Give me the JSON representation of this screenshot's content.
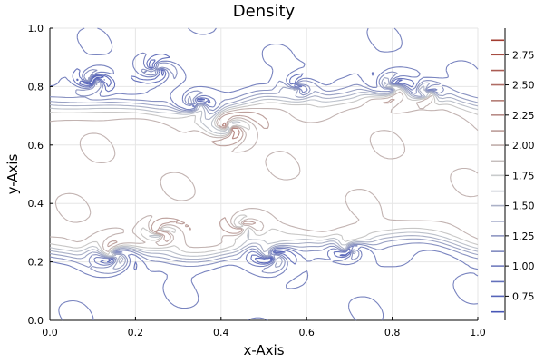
{
  "chart_data": {
    "type": "contour",
    "title": "Density",
    "xlabel": "x-Axis",
    "ylabel": "y-Axis",
    "xlim": [
      0,
      1
    ],
    "ylim": [
      0,
      1
    ],
    "grid": true,
    "x_ticks": [
      0.0,
      0.2,
      0.4,
      0.6,
      0.8,
      1.0
    ],
    "x_tick_labels": [
      "0.0",
      "0.2",
      "0.4",
      "0.6",
      "0.8",
      "1.0"
    ],
    "y_ticks": [
      0.0,
      0.2,
      0.4,
      0.6,
      0.8,
      1.0
    ],
    "y_tick_labels": [
      "0.0",
      "0.2",
      "0.4",
      "0.6",
      "0.8",
      "1.0"
    ],
    "colorbar": {
      "range": [
        0.55,
        2.97
      ],
      "ticks": [
        0.75,
        1.0,
        1.25,
        1.5,
        1.75,
        2.0,
        2.25,
        2.5,
        2.75
      ],
      "tick_labels": [
        "0.75",
        "1.00",
        "1.25",
        "1.50",
        "1.75",
        "2.00",
        "2.25",
        "2.50",
        "2.75"
      ],
      "levels": [
        0.62,
        0.75,
        0.87,
        1.0,
        1.12,
        1.25,
        1.37,
        1.5,
        1.62,
        1.75,
        1.87,
        2.0,
        2.12,
        2.25,
        2.37,
        2.5,
        2.62,
        2.75,
        2.87
      ]
    },
    "colors": {
      "low": "#3f4fb5",
      "mid": "#c9cccc",
      "high": "#9e2f22"
    }
  }
}
